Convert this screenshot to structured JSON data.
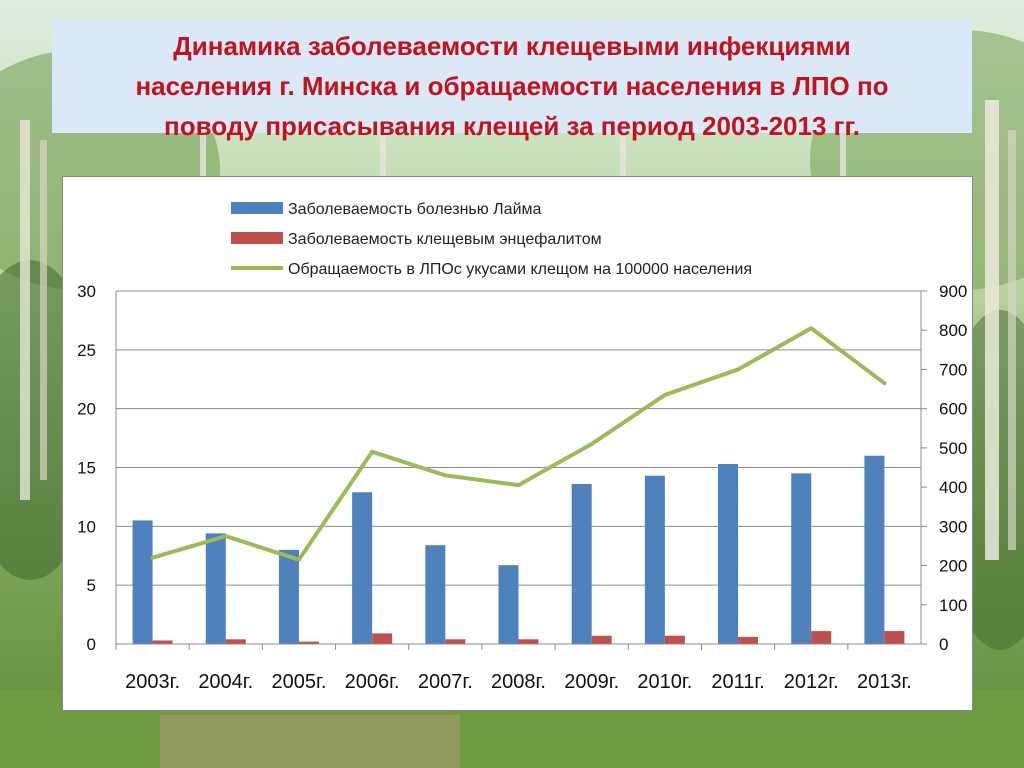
{
  "title": {
    "lines": [
      "Динамика заболеваемости клещевыми инфекциями",
      "населения г. Минска и обращаемости населения в ЛПО по",
      "поводу присасывания клещей за период 2003-2013 гг."
    ]
  },
  "colors": {
    "title": "#c0131f",
    "title_bg": "#dbe8f5",
    "lyme": "#4f81bd",
    "tbe": "#c0504d",
    "visits": "#9bbb59",
    "grid": "#8c8c8c"
  },
  "chart_data": {
    "type": "bar",
    "categories": [
      "2003г.",
      "2004г.",
      "2005г.",
      "2006г.",
      "2007г.",
      "2008г.",
      "2009г.",
      "2010г.",
      "2011г.",
      "2012г.",
      "2013г."
    ],
    "series": [
      {
        "name": "Заболеваемость болезнью Лайма",
        "type": "bar",
        "axis": "left",
        "values": [
          10.5,
          9.4,
          8.0,
          12.9,
          8.4,
          6.7,
          13.6,
          14.3,
          15.3,
          14.5,
          16.0
        ]
      },
      {
        "name": "Заболеваемость клещевым энцефалитом",
        "type": "bar",
        "axis": "left",
        "values": [
          0.3,
          0.4,
          0.2,
          0.9,
          0.4,
          0.4,
          0.7,
          0.7,
          0.6,
          1.1,
          1.1
        ]
      },
      {
        "name": "Обращаемость в ЛПОс укусами клещом на 100000 населения",
        "type": "line",
        "axis": "right",
        "values": [
          220,
          275,
          215,
          490,
          430,
          405,
          510,
          635,
          700,
          805,
          665
        ]
      }
    ],
    "y_left": {
      "ylim": [
        0,
        30
      ],
      "ticks": [
        "0",
        "5",
        "10",
        "15",
        "20",
        "25",
        "30"
      ]
    },
    "y_right": {
      "ylim": [
        0,
        900
      ],
      "ticks": [
        "0",
        "100",
        "200",
        "300",
        "400",
        "500",
        "600",
        "700",
        "800",
        "900"
      ]
    },
    "grid": true,
    "legend_position": "top"
  }
}
